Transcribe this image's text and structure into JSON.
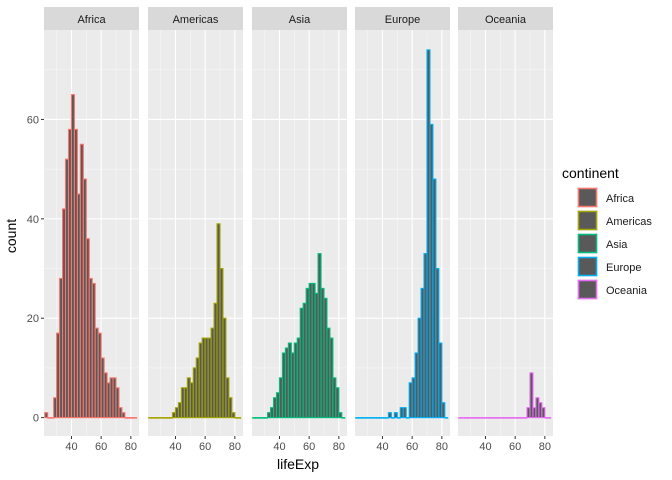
{
  "chart_data": {
    "type": "bar",
    "subtype": "faceted-histogram",
    "xlabel": "lifeExp",
    "ylabel": "count",
    "xlim": [
      21.5,
      85.5
    ],
    "ylim": [
      -3.7,
      78
    ],
    "x_ticks": [
      40,
      60,
      80
    ],
    "y_ticks": [
      0,
      20,
      40,
      60
    ],
    "grid": true,
    "legend_title": "continent",
    "legend_position": "right",
    "bins": {
      "start": 22.0,
      "width": 2.0,
      "centers": [
        23,
        25,
        27,
        29,
        31,
        33,
        35,
        37,
        39,
        41,
        43,
        45,
        47,
        49,
        51,
        53,
        55,
        57,
        59,
        61,
        63,
        65,
        67,
        69,
        71,
        73,
        75,
        77,
        79,
        81,
        83
      ]
    },
    "series": [
      {
        "name": "Africa",
        "fill": "#F8766D",
        "values": [
          1,
          0,
          0,
          4,
          17,
          28,
          42,
          52,
          58,
          65,
          58,
          45,
          55,
          48,
          36,
          28,
          27,
          18,
          17,
          12,
          9,
          7,
          8,
          8,
          6,
          2,
          1,
          0,
          0,
          0,
          0
        ]
      },
      {
        "name": "Americas",
        "fill": "#A3A500",
        "values": [
          0,
          0,
          0,
          0,
          0,
          0,
          0,
          0,
          1,
          2,
          3,
          6,
          6,
          8,
          7,
          10,
          12,
          15,
          16,
          16,
          16,
          18,
          23,
          39,
          30,
          20,
          8,
          4,
          1,
          0,
          0
        ]
      },
      {
        "name": "Asia",
        "fill": "#00BF7D",
        "values": [
          0,
          0,
          0,
          0,
          0,
          1,
          2,
          4,
          5,
          8,
          13,
          14,
          15,
          13,
          15,
          16,
          22,
          23,
          26,
          27,
          27,
          25,
          33,
          26,
          24,
          18,
          16,
          8,
          6,
          1,
          0
        ]
      },
      {
        "name": "Europe",
        "fill": "#00B0F6",
        "values": [
          0,
          0,
          0,
          0,
          0,
          0,
          0,
          0,
          0,
          0,
          0,
          1,
          0,
          1,
          0,
          2,
          2,
          0,
          7,
          8,
          13,
          20,
          26,
          33,
          74,
          59,
          48,
          30,
          15,
          3,
          0
        ]
      },
      {
        "name": "Oceania",
        "fill": "#E76BF3",
        "values": [
          0,
          0,
          0,
          0,
          0,
          0,
          0,
          0,
          0,
          0,
          0,
          0,
          0,
          0,
          0,
          0,
          0,
          0,
          0,
          0,
          0,
          0,
          0,
          2,
          9,
          2,
          4,
          3,
          2,
          0,
          0
        ]
      }
    ]
  }
}
